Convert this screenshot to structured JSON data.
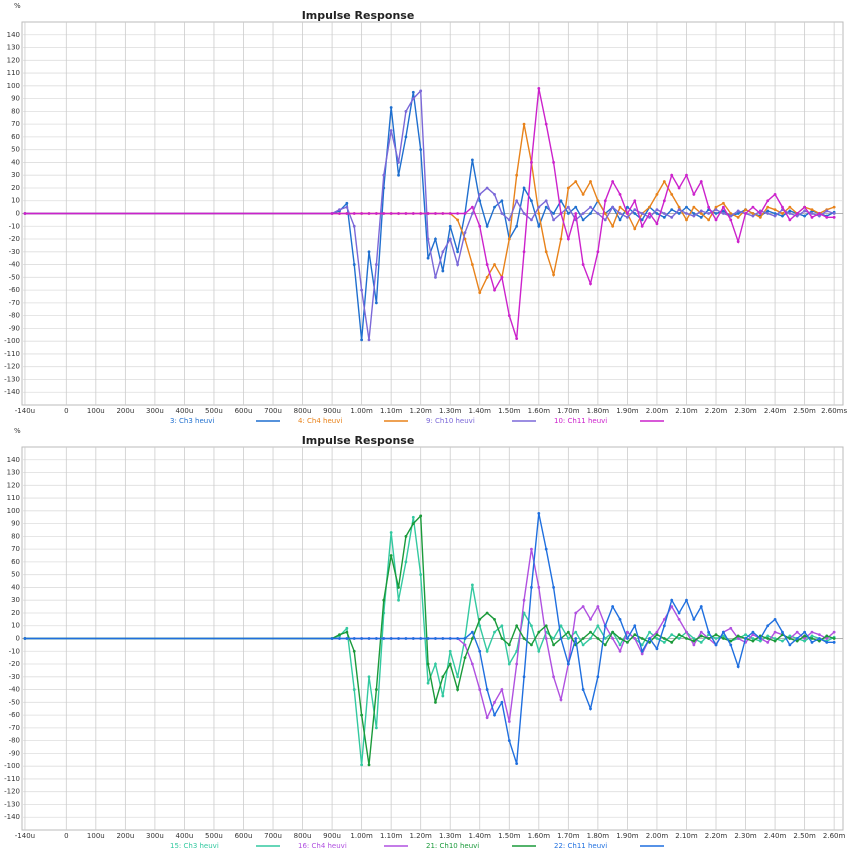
{
  "chart_data": [
    {
      "type": "line",
      "title": "Impulse Response",
      "y_label": "%",
      "grid": true,
      "markers": true,
      "xlim": [
        -0.15,
        2.63
      ],
      "ylim": [
        -150,
        150
      ],
      "xticks": [
        {
          "value": -0.14,
          "label": "-140u"
        },
        0,
        {
          "value": 0.1,
          "label": "100u"
        },
        {
          "value": 0.2,
          "label": "200u"
        },
        {
          "value": 0.3,
          "label": "300u"
        },
        {
          "value": 0.4,
          "label": "400u"
        },
        {
          "value": 0.5,
          "label": "500u"
        },
        {
          "value": 0.6,
          "label": "600u"
        },
        {
          "value": 0.7,
          "label": "700u"
        },
        {
          "value": 0.8,
          "label": "800u"
        },
        {
          "value": 0.9,
          "label": "900u"
        },
        {
          "value": 1.0,
          "label": "1.00m"
        },
        {
          "value": 1.1,
          "label": "1.10m"
        },
        {
          "value": 1.2,
          "label": "1.20m"
        },
        {
          "value": 1.3,
          "label": "1.30m"
        },
        {
          "value": 1.4,
          "label": "1.40m"
        },
        {
          "value": 1.5,
          "label": "1.50m"
        },
        {
          "value": 1.6,
          "label": "1.60m"
        },
        {
          "value": 1.7,
          "label": "1.70m"
        },
        {
          "value": 1.8,
          "label": "1.80m"
        },
        {
          "value": 1.9,
          "label": "1.90m"
        },
        {
          "value": 2.0,
          "label": "2.00m"
        },
        {
          "value": 2.1,
          "label": "2.10m"
        },
        {
          "value": 2.2,
          "label": "2.20m"
        },
        {
          "value": 2.3,
          "label": "2.30m"
        },
        {
          "value": 2.4,
          "label": "2.40m"
        },
        {
          "value": 2.5,
          "label": "2.50m"
        },
        {
          "value": 2.6,
          "label": "2.60ms"
        }
      ],
      "yticks": [
        -140,
        -130,
        -120,
        -110,
        -100,
        -90,
        -80,
        -70,
        -60,
        -50,
        -40,
        -30,
        -20,
        -10,
        0,
        10,
        20,
        30,
        40,
        50,
        60,
        70,
        80,
        90,
        100,
        110,
        120,
        130,
        140
      ],
      "x": [
        -0.14,
        0.9,
        0.925,
        0.95,
        0.975,
        1.0,
        1.025,
        1.05,
        1.075,
        1.1,
        1.125,
        1.15,
        1.175,
        1.2,
        1.225,
        1.25,
        1.275,
        1.3,
        1.325,
        1.35,
        1.375,
        1.4,
        1.425,
        1.45,
        1.475,
        1.5,
        1.525,
        1.55,
        1.575,
        1.6,
        1.625,
        1.65,
        1.675,
        1.7,
        1.725,
        1.75,
        1.775,
        1.8,
        1.825,
        1.85,
        1.875,
        1.9,
        1.925,
        1.95,
        1.975,
        2.0,
        2.025,
        2.05,
        2.075,
        2.1,
        2.125,
        2.15,
        2.175,
        2.2,
        2.225,
        2.25,
        2.275,
        2.3,
        2.325,
        2.35,
        2.375,
        2.4,
        2.425,
        2.45,
        2.475,
        2.5,
        2.525,
        2.55,
        2.575,
        2.6
      ],
      "series": [
        {
          "name": "3: Ch3 heuvi",
          "color": "#1f6fcf",
          "values": [
            0,
            0,
            2,
            8,
            -40,
            -99,
            -30,
            -70,
            20,
            83,
            30,
            60,
            95,
            50,
            -35,
            -20,
            -45,
            -10,
            -30,
            0,
            42,
            10,
            -10,
            5,
            10,
            -20,
            -10,
            20,
            10,
            -10,
            5,
            0,
            10,
            0,
            5,
            -5,
            0,
            10,
            0,
            5,
            -5,
            5,
            0,
            -5,
            5,
            0,
            -3,
            3,
            0,
            5,
            0,
            -3,
            3,
            0,
            2,
            -2,
            0,
            3,
            0,
            -2,
            2,
            0,
            -2,
            2,
            0,
            -2,
            2,
            0,
            -2,
            1
          ]
        },
        {
          "name": "4: Ch4 heuvi",
          "color": "#e8821a",
          "values": [
            0,
            0,
            0,
            0,
            0,
            0,
            0,
            0,
            0,
            0,
            0,
            0,
            0,
            0,
            0,
            0,
            0,
            0,
            -5,
            -20,
            -40,
            -62,
            -50,
            -40,
            -50,
            -20,
            30,
            70,
            40,
            0,
            -30,
            -48,
            -20,
            20,
            25,
            15,
            25,
            10,
            0,
            -10,
            5,
            0,
            -12,
            0,
            5,
            15,
            25,
            15,
            5,
            -5,
            5,
            0,
            -5,
            5,
            8,
            0,
            -3,
            3,
            0,
            -3,
            5,
            3,
            0,
            5,
            0,
            5,
            3,
            0,
            3,
            5
          ]
        },
        {
          "name": "9: Ch10 heuvi",
          "color": "#7b68d8",
          "values": [
            0,
            0,
            3,
            5,
            -10,
            -60,
            -99,
            -40,
            30,
            65,
            40,
            80,
            90,
            96,
            -20,
            -50,
            -30,
            -20,
            -40,
            -15,
            0,
            15,
            20,
            15,
            0,
            -5,
            10,
            0,
            -5,
            5,
            10,
            -5,
            0,
            5,
            -5,
            0,
            5,
            0,
            -5,
            5,
            0,
            -3,
            3,
            0,
            -3,
            3,
            0,
            -3,
            3,
            0,
            -2,
            2,
            0,
            3,
            0,
            -2,
            2,
            0,
            -2,
            2,
            0,
            -2,
            3,
            0,
            -2,
            2,
            0,
            -2,
            2,
            0
          ]
        },
        {
          "name": "10: Ch11 heuvi",
          "color": "#cc22cc",
          "values": [
            0,
            0,
            0,
            0,
            0,
            0,
            0,
            0,
            0,
            0,
            0,
            0,
            0,
            0,
            0,
            0,
            0,
            0,
            0,
            0,
            5,
            -10,
            -40,
            -60,
            -50,
            -80,
            -98,
            -30,
            40,
            98,
            70,
            40,
            0,
            -20,
            0,
            -40,
            -55,
            -30,
            10,
            25,
            15,
            0,
            10,
            -10,
            0,
            -8,
            10,
            30,
            20,
            30,
            15,
            25,
            5,
            -5,
            5,
            -5,
            -22,
            0,
            5,
            0,
            10,
            15,
            5,
            -5,
            0,
            5,
            -3,
            0,
            -3,
            -3
          ]
        }
      ]
    },
    {
      "type": "line",
      "title": "Impulse Response",
      "y_label": "%",
      "grid": true,
      "markers": true,
      "xlim": [
        -0.15,
        2.63
      ],
      "ylim": [
        -150,
        150
      ],
      "xticks": [
        {
          "value": -0.14,
          "label": "-140u"
        },
        0,
        {
          "value": 0.1,
          "label": "100u"
        },
        {
          "value": 0.2,
          "label": "200u"
        },
        {
          "value": 0.3,
          "label": "300u"
        },
        {
          "value": 0.4,
          "label": "400u"
        },
        {
          "value": 0.5,
          "label": "500u"
        },
        {
          "value": 0.6,
          "label": "600u"
        },
        {
          "value": 0.7,
          "label": "700u"
        },
        {
          "value": 0.8,
          "label": "800u"
        },
        {
          "value": 0.9,
          "label": "900u"
        },
        {
          "value": 1.0,
          "label": "1.00m"
        },
        {
          "value": 1.1,
          "label": "1.10m"
        },
        {
          "value": 1.2,
          "label": "1.20m"
        },
        {
          "value": 1.3,
          "label": "1.30m"
        },
        {
          "value": 1.4,
          "label": "1.40m"
        },
        {
          "value": 1.5,
          "label": "1.50m"
        },
        {
          "value": 1.6,
          "label": "1.60m"
        },
        {
          "value": 1.7,
          "label": "1.70m"
        },
        {
          "value": 1.8,
          "label": "1.80m"
        },
        {
          "value": 1.9,
          "label": "1.90m"
        },
        {
          "value": 2.0,
          "label": "2.00m"
        },
        {
          "value": 2.1,
          "label": "2.10m"
        },
        {
          "value": 2.2,
          "label": "2.20m"
        },
        {
          "value": 2.3,
          "label": "2.30m"
        },
        {
          "value": 2.4,
          "label": "2.40m"
        },
        {
          "value": 2.5,
          "label": "2.50m"
        },
        {
          "value": 2.6,
          "label": "2.60m"
        }
      ],
      "yticks": [
        -140,
        -130,
        -120,
        -110,
        -100,
        -90,
        -80,
        -70,
        -60,
        -50,
        -40,
        -30,
        -20,
        -10,
        0,
        10,
        20,
        30,
        40,
        50,
        60,
        70,
        80,
        90,
        100,
        110,
        120,
        130,
        140
      ],
      "x": [
        -0.14,
        0.9,
        0.925,
        0.95,
        0.975,
        1.0,
        1.025,
        1.05,
        1.075,
        1.1,
        1.125,
        1.15,
        1.175,
        1.2,
        1.225,
        1.25,
        1.275,
        1.3,
        1.325,
        1.35,
        1.375,
        1.4,
        1.425,
        1.45,
        1.475,
        1.5,
        1.525,
        1.55,
        1.575,
        1.6,
        1.625,
        1.65,
        1.675,
        1.7,
        1.725,
        1.75,
        1.775,
        1.8,
        1.825,
        1.85,
        1.875,
        1.9,
        1.925,
        1.95,
        1.975,
        2.0,
        2.025,
        2.05,
        2.075,
        2.1,
        2.125,
        2.15,
        2.175,
        2.2,
        2.225,
        2.25,
        2.275,
        2.3,
        2.325,
        2.35,
        2.375,
        2.4,
        2.425,
        2.45,
        2.475,
        2.5,
        2.525,
        2.55,
        2.575,
        2.6
      ],
      "series": [
        {
          "name": "15: Ch3 heuvi",
          "color": "#33c9a0",
          "values": [
            0,
            0,
            2,
            8,
            -40,
            -99,
            -30,
            -70,
            20,
            83,
            30,
            60,
            95,
            50,
            -35,
            -20,
            -45,
            -10,
            -30,
            0,
            42,
            10,
            -10,
            5,
            10,
            -20,
            -10,
            20,
            10,
            -10,
            5,
            0,
            10,
            0,
            5,
            -5,
            0,
            10,
            0,
            5,
            -5,
            5,
            0,
            -5,
            5,
            0,
            -3,
            3,
            0,
            5,
            0,
            -3,
            3,
            0,
            2,
            -2,
            0,
            3,
            0,
            -2,
            2,
            0,
            -2,
            2,
            0,
            -2,
            2,
            0,
            -2,
            1
          ]
        },
        {
          "name": "16: Ch4 heuvi",
          "color": "#b050e0",
          "values": [
            0,
            0,
            0,
            0,
            0,
            0,
            0,
            0,
            0,
            0,
            0,
            0,
            0,
            0,
            0,
            0,
            0,
            0,
            0,
            -5,
            -20,
            -40,
            -62,
            -50,
            -40,
            -65,
            -20,
            30,
            70,
            40,
            0,
            -30,
            -48,
            -20,
            20,
            25,
            15,
            25,
            10,
            0,
            -10,
            5,
            0,
            -12,
            0,
            5,
            15,
            25,
            15,
            5,
            -5,
            5,
            0,
            -5,
            5,
            8,
            0,
            -3,
            3,
            0,
            -3,
            5,
            3,
            0,
            5,
            0,
            5,
            3,
            0,
            5
          ]
        },
        {
          "name": "21: Ch10 heuvi",
          "color": "#1a9a3a",
          "values": [
            0,
            0,
            3,
            5,
            -10,
            -60,
            -99,
            -40,
            30,
            65,
            40,
            80,
            90,
            96,
            -20,
            -50,
            -30,
            -20,
            -40,
            -15,
            0,
            15,
            20,
            15,
            0,
            -5,
            10,
            0,
            -5,
            5,
            10,
            -5,
            0,
            5,
            -5,
            0,
            5,
            0,
            -5,
            5,
            0,
            -3,
            3,
            0,
            -3,
            3,
            0,
            -3,
            3,
            0,
            -2,
            2,
            0,
            3,
            0,
            -2,
            2,
            0,
            -2,
            2,
            0,
            -2,
            3,
            0,
            -2,
            2,
            0,
            -2,
            2,
            0
          ]
        },
        {
          "name": "22: Ch11 heuvi",
          "color": "#1f6fdf",
          "values": [
            0,
            0,
            0,
            0,
            0,
            0,
            0,
            0,
            0,
            0,
            0,
            0,
            0,
            0,
            0,
            0,
            0,
            0,
            0,
            0,
            5,
            -10,
            -40,
            -60,
            -50,
            -80,
            -98,
            -30,
            40,
            98,
            70,
            40,
            0,
            -20,
            0,
            -40,
            -55,
            -30,
            10,
            25,
            15,
            0,
            10,
            -10,
            0,
            -8,
            10,
            30,
            20,
            30,
            15,
            25,
            5,
            -5,
            5,
            -5,
            -22,
            0,
            5,
            0,
            10,
            15,
            5,
            -5,
            0,
            5,
            -3,
            0,
            -3,
            -3
          ]
        }
      ]
    }
  ]
}
